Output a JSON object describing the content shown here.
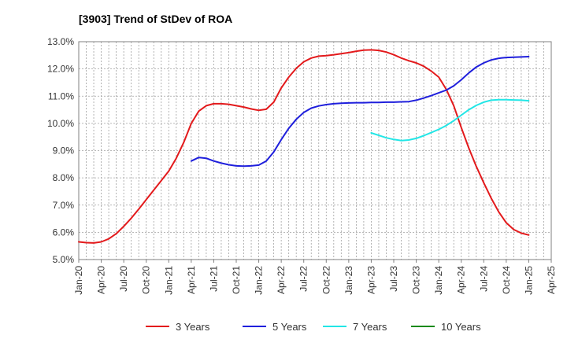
{
  "chart_data": {
    "type": "line",
    "title": "[3903]  Trend of StDev of ROA",
    "xlabel": "",
    "ylabel": "",
    "ylim": [
      5.0,
      13.0
    ],
    "y_ticks": [
      "5.0%",
      "6.0%",
      "7.0%",
      "8.0%",
      "9.0%",
      "10.0%",
      "11.0%",
      "12.0%",
      "13.0%"
    ],
    "x_ticks": [
      "Jan-20",
      "Apr-20",
      "Jul-20",
      "Oct-20",
      "Jan-21",
      "Apr-21",
      "Jul-21",
      "Oct-21",
      "Jan-22",
      "Apr-22",
      "Jul-22",
      "Oct-22",
      "Jan-23",
      "Apr-23",
      "Jul-23",
      "Oct-23",
      "Jan-24",
      "Apr-24",
      "Jul-24",
      "Oct-24",
      "Jan-25",
      "Apr-25"
    ],
    "x_range": [
      "Jan-20",
      "Apr-25"
    ],
    "grid": "on, dotted vertical lines monthly, horizontal at each tick",
    "legend_position": "bottom",
    "series": [
      {
        "name": "3 Years",
        "color": "#e31a1c",
        "x": [
          "Jan-20",
          "Feb-20",
          "Mar-20",
          "Apr-20",
          "May-20",
          "Jun-20",
          "Jul-20",
          "Aug-20",
          "Sep-20",
          "Oct-20",
          "Nov-20",
          "Dec-20",
          "Jan-21",
          "Feb-21",
          "Mar-21",
          "Apr-21",
          "May-21",
          "Jun-21",
          "Jul-21",
          "Aug-21",
          "Sep-21",
          "Oct-21",
          "Nov-21",
          "Dec-21",
          "Jan-22",
          "Feb-22",
          "Mar-22",
          "Apr-22",
          "May-22",
          "Jun-22",
          "Jul-22",
          "Aug-22",
          "Sep-22",
          "Oct-22",
          "Nov-22",
          "Dec-22",
          "Jan-23",
          "Feb-23",
          "Mar-23",
          "Apr-23",
          "May-23",
          "Jun-23",
          "Jul-23",
          "Aug-23",
          "Sep-23",
          "Oct-23",
          "Nov-23",
          "Dec-23",
          "Jan-24",
          "Feb-24",
          "Mar-24",
          "Apr-24",
          "May-24",
          "Jun-24",
          "Jul-24",
          "Aug-24",
          "Sep-24",
          "Oct-24",
          "Nov-24",
          "Dec-24",
          "Jan-25"
        ],
        "values": [
          5.65,
          5.62,
          5.61,
          5.65,
          5.76,
          5.95,
          6.22,
          6.52,
          6.85,
          7.2,
          7.55,
          7.9,
          8.25,
          8.72,
          9.3,
          10.0,
          10.45,
          10.65,
          10.72,
          10.72,
          10.7,
          10.65,
          10.6,
          10.53,
          10.48,
          10.52,
          10.78,
          11.3,
          11.7,
          12.02,
          12.26,
          12.4,
          12.47,
          12.49,
          12.52,
          12.56,
          12.6,
          12.65,
          12.69,
          12.7,
          12.68,
          12.62,
          12.52,
          12.4,
          12.3,
          12.22,
          12.1,
          11.92,
          11.7,
          11.25,
          10.65,
          9.85,
          9.1,
          8.42,
          7.82,
          7.25,
          6.75,
          6.35,
          6.1,
          5.97,
          5.9
        ]
      },
      {
        "name": "5 Years",
        "color": "#1f1fdc",
        "x": [
          "Apr-21",
          "May-21",
          "Jun-21",
          "Jul-21",
          "Aug-21",
          "Sep-21",
          "Oct-21",
          "Nov-21",
          "Dec-21",
          "Jan-22",
          "Feb-22",
          "Mar-22",
          "Apr-22",
          "May-22",
          "Jun-22",
          "Jul-22",
          "Aug-22",
          "Sep-22",
          "Oct-22",
          "Nov-22",
          "Dec-22",
          "Jan-23",
          "Feb-23",
          "Mar-23",
          "Apr-23",
          "May-23",
          "Jun-23",
          "Jul-23",
          "Aug-23",
          "Sep-23",
          "Oct-23",
          "Nov-23",
          "Dec-23",
          "Jan-24",
          "Feb-24",
          "Mar-24",
          "Apr-24",
          "May-24",
          "Jun-24",
          "Jul-24",
          "Aug-24",
          "Sep-24",
          "Oct-24",
          "Nov-24",
          "Dec-24",
          "Jan-25"
        ],
        "values": [
          8.62,
          8.75,
          8.72,
          8.62,
          8.54,
          8.48,
          8.44,
          8.43,
          8.44,
          8.47,
          8.62,
          8.95,
          9.4,
          9.82,
          10.15,
          10.4,
          10.56,
          10.64,
          10.69,
          10.72,
          10.74,
          10.75,
          10.76,
          10.76,
          10.77,
          10.77,
          10.78,
          10.78,
          10.79,
          10.8,
          10.85,
          10.93,
          11.02,
          11.12,
          11.22,
          11.38,
          11.6,
          11.85,
          12.07,
          12.22,
          12.33,
          12.39,
          12.42,
          12.43,
          12.44,
          12.45
        ]
      },
      {
        "name": "7 Years",
        "color": "#22e6e6",
        "x": [
          "Apr-23",
          "May-23",
          "Jun-23",
          "Jul-23",
          "Aug-23",
          "Sep-23",
          "Oct-23",
          "Nov-23",
          "Dec-23",
          "Jan-24",
          "Feb-24",
          "Mar-24",
          "Apr-24",
          "May-24",
          "Jun-24",
          "Jul-24",
          "Aug-24",
          "Sep-24",
          "Oct-24",
          "Nov-24",
          "Dec-24",
          "Jan-25"
        ],
        "values": [
          9.65,
          9.56,
          9.47,
          9.41,
          9.37,
          9.39,
          9.45,
          9.55,
          9.66,
          9.78,
          9.92,
          10.1,
          10.3,
          10.5,
          10.66,
          10.78,
          10.85,
          10.87,
          10.87,
          10.86,
          10.85,
          10.83
        ]
      },
      {
        "name": "10 Years",
        "color": "#1a8a1a",
        "x": [],
        "values": []
      }
    ]
  }
}
